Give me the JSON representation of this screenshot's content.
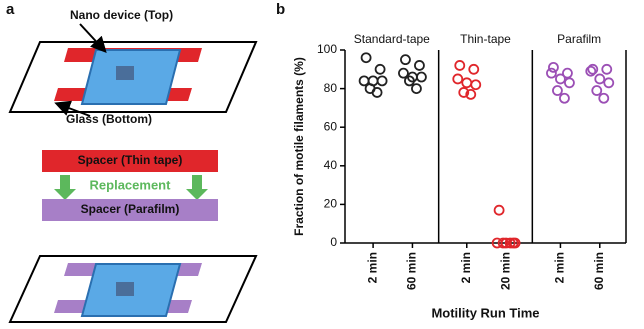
{
  "panel_a": {
    "label": "a",
    "top_label": "Nano device (Top)",
    "bottom_label": "Glass (Bottom)",
    "spacer_1": "Spacer (Thin tape)",
    "replacement": "Replacement",
    "spacer_2": "Spacer (Parafilm)"
  },
  "chart_data": {
    "type": "strip",
    "panel_label": "b",
    "ylabel": "Fraction of motile filaments (%)",
    "xlabel": "Motility Run Time",
    "ylim": [
      0,
      100
    ],
    "yticks": [
      0,
      20,
      40,
      60,
      80,
      100
    ],
    "groups": [
      {
        "name": "Standard-tape",
        "color": "#222222",
        "categories": [
          "2 min",
          "60 min"
        ],
        "values": [
          [
            96,
            90,
            84,
            84,
            84,
            80,
            78
          ],
          [
            95,
            92,
            88,
            86,
            86,
            84,
            80
          ]
        ]
      },
      {
        "name": "Thin-tape",
        "color": "#e0262b",
        "categories": [
          "2 min",
          "20 min"
        ],
        "values": [
          [
            92,
            90,
            85,
            83,
            82,
            78,
            77
          ],
          [
            17,
            0,
            0,
            0,
            0,
            0,
            0
          ]
        ]
      },
      {
        "name": "Parafilm",
        "color": "#9b4fb5",
        "categories": [
          "2 min",
          "60 min"
        ],
        "values": [
          [
            91,
            88,
            88,
            85,
            83,
            79,
            75
          ],
          [
            90,
            90,
            89,
            85,
            83,
            79,
            75
          ]
        ]
      }
    ]
  }
}
